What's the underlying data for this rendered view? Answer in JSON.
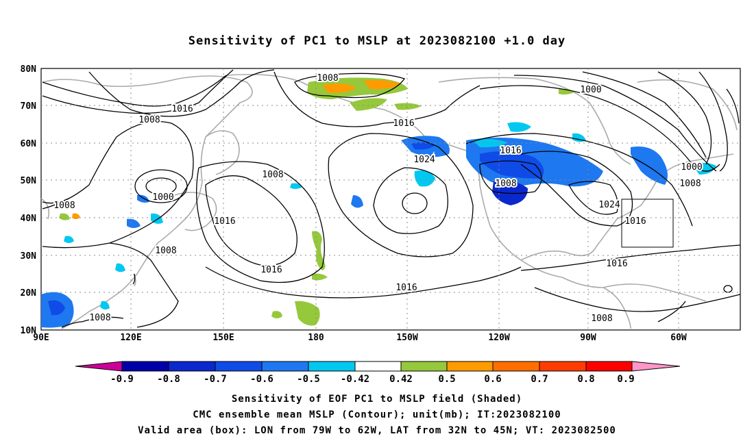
{
  "title": "Sensitivity of PC1 to MSLP at 2023082100 +1.0 day",
  "axes": {
    "lat_labels": [
      "80N",
      "70N",
      "60N",
      "50N",
      "40N",
      "30N",
      "20N",
      "10N"
    ],
    "lon_labels": [
      "90E",
      "120E",
      "150E",
      "180",
      "150W",
      "120W",
      "90W",
      "60W"
    ]
  },
  "contour_labels": [
    "1008",
    "1016",
    "1008",
    "1008",
    "1000",
    "1008",
    "1016",
    "1016",
    "1008",
    "1008",
    "1008",
    "1016",
    "1024",
    "1016",
    "1016",
    "1008",
    "1016",
    "1000",
    "1024",
    "1016",
    "1016",
    "1000",
    "1008",
    "1008"
  ],
  "colorbar": {
    "tick_labels": [
      "-0.9",
      "-0.8",
      "-0.7",
      "-0.6",
      "-0.5",
      "-0.42",
      "0.42",
      "0.5",
      "0.6",
      "0.7",
      "0.8",
      "0.9"
    ],
    "colors": [
      "#cc0099",
      "#0000a8",
      "#0a28cc",
      "#0f4be6",
      "#1e78f0",
      "#00c8f0",
      "#ffffff",
      "#96c83c",
      "#ff9b00",
      "#ff6e00",
      "#ff3c00",
      "#ff0000",
      "#ff96c8"
    ]
  },
  "captions": {
    "line1": "Sensitivity of EOF PC1 to MSLP field (Shaded)",
    "line2": "CMC ensemble mean MSLP (Contour); unit(mb); IT:2023082100",
    "line3": "Valid area (box): LON from 79W to 62W, LAT from 32N to 45N; VT: 2023082500"
  },
  "valid_box": {
    "lon_min": "79W",
    "lon_max": "62W",
    "lat_min": "32N",
    "lat_max": "45N"
  }
}
